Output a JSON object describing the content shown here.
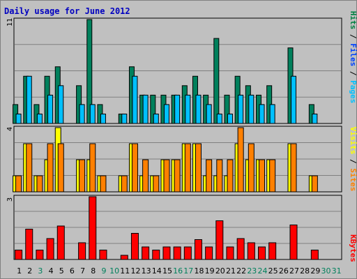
{
  "chart_data": {
    "type": "bar",
    "title": "Daily usage for June 2012",
    "days": [
      "1",
      "2",
      "3",
      "4",
      "5",
      "6",
      "7",
      "8",
      "9",
      "10",
      "11",
      "12",
      "13",
      "14",
      "15",
      "16",
      "17",
      "18",
      "19",
      "20",
      "21",
      "22",
      "23",
      "24",
      "25",
      "26",
      "27",
      "28",
      "29",
      "30",
      "31"
    ],
    "weekend_days": [
      3,
      9,
      10,
      16,
      17,
      23,
      24,
      30,
      31
    ],
    "scales": {
      "hits": "11",
      "sites": "4",
      "kbytes": "3"
    },
    "side_labels": {
      "top": [
        {
          "text": "Hits",
          "color": "#008040"
        },
        {
          "text": " / ",
          "color": "#000000"
        },
        {
          "text": "Files",
          "color": "#0040ff"
        },
        {
          "text": " / ",
          "color": "#000000"
        },
        {
          "text": "Pages",
          "color": "#00c0ff"
        }
      ],
      "middle": [
        {
          "text": "Visits",
          "color": "#ffff00"
        },
        {
          "text": " / ",
          "color": "#000000"
        },
        {
          "text": "Sites",
          "color": "#ff8000"
        }
      ],
      "bottom": [
        {
          "text": "KBytes",
          "color": "#ff0000"
        }
      ]
    },
    "colors": {
      "hits": "#00805c",
      "files": "#0040ff",
      "pages": "#00c0ff",
      "visits": "#ffff00",
      "sites": "#ff8000",
      "kbytes": "#ff0000",
      "weekday_label": "#000000",
      "weekend_label": "#00805c"
    },
    "series": [
      {
        "name": "Hits",
        "values": [
          2,
          5,
          2,
          5,
          6,
          0,
          4,
          11,
          2,
          0,
          1,
          6,
          3,
          3,
          3,
          3,
          4,
          5,
          3,
          9,
          3,
          5,
          4,
          3,
          4,
          0,
          8,
          0,
          2,
          0,
          0
        ]
      },
      {
        "name": "Pages",
        "values": [
          1,
          5,
          1,
          3,
          4,
          0,
          2,
          2,
          1,
          0,
          1,
          5,
          3,
          1,
          2,
          3,
          3,
          3,
          2,
          1,
          1,
          3,
          3,
          2,
          2,
          0,
          5,
          0,
          1,
          0,
          0
        ]
      },
      {
        "name": "Visits",
        "values": [
          1,
          3,
          1,
          2,
          4,
          0,
          2,
          2,
          1,
          0,
          1,
          3,
          1,
          1,
          2,
          2,
          3,
          3,
          1,
          1,
          1,
          3,
          2,
          2,
          2,
          0,
          3,
          0,
          1,
          0,
          0
        ]
      },
      {
        "name": "Sites",
        "values": [
          1,
          3,
          1,
          3,
          3,
          0,
          2,
          3,
          1,
          0,
          1,
          3,
          2,
          1,
          2,
          2,
          3,
          3,
          2,
          2,
          2,
          4,
          3,
          2,
          2,
          0,
          3,
          0,
          1,
          0,
          0
        ]
      },
      {
        "name": "KBytes",
        "values": [
          0.45,
          1.45,
          0.45,
          1.0,
          1.6,
          0,
          0.8,
          3.0,
          0.45,
          0,
          0.2,
          1.25,
          0.6,
          0.45,
          0.6,
          0.6,
          0.6,
          0.95,
          0.6,
          1.85,
          0.6,
          1.0,
          0.8,
          0.6,
          0.8,
          0,
          1.65,
          0,
          0.45,
          0,
          0
        ]
      }
    ],
    "ylim": {
      "hits": [
        0,
        11
      ],
      "sites": [
        0,
        4
      ],
      "kbytes": [
        0,
        3
      ]
    },
    "grid": true,
    "legend": "right-side vertical labels"
  }
}
